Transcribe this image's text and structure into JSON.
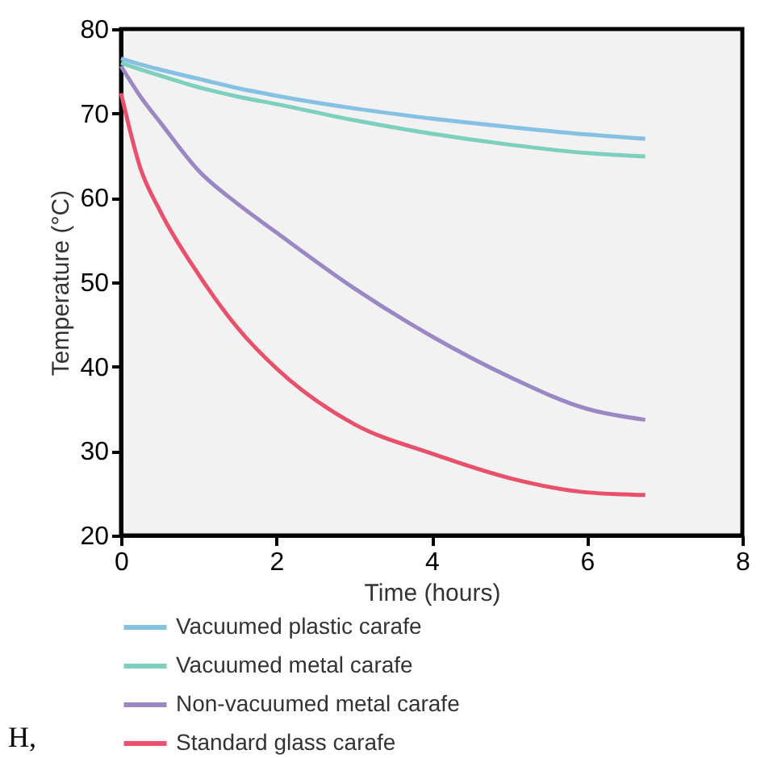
{
  "chart_data": {
    "type": "line",
    "xlabel": "Time (hours)",
    "ylabel": "Temperature (°C)",
    "xlim": [
      0,
      8
    ],
    "xticks": [
      0,
      2,
      4,
      6,
      8
    ],
    "ylim": [
      20,
      80
    ],
    "yticks": [
      20,
      30,
      40,
      50,
      60,
      70,
      80
    ],
    "x": [
      0,
      0.25,
      0.5,
      1,
      1.5,
      2,
      3,
      4,
      5,
      6,
      6.75
    ],
    "series": [
      {
        "name": "Vacuumed plastic carafe",
        "color": "#85c1e3",
        "values": [
          76.5,
          75.8,
          75.2,
          74.1,
          73.0,
          72.1,
          70.6,
          69.4,
          68.4,
          67.5,
          67.0
        ]
      },
      {
        "name": "Vacuumed metal carafe",
        "color": "#7dd0bd",
        "values": [
          76.0,
          75.2,
          74.5,
          73.1,
          72.0,
          71.1,
          69.2,
          67.6,
          66.3,
          65.3,
          64.9
        ]
      },
      {
        "name": "Non-vacuumed metal carafe",
        "color": "#9b87c4",
        "values": [
          75.6,
          72.0,
          69.0,
          63.2,
          59.3,
          55.9,
          49.3,
          43.6,
          38.8,
          35.0,
          33.7
        ]
      },
      {
        "name": "Standard glass carafe",
        "color": "#e8506c",
        "values": [
          72.4,
          63.5,
          58.5,
          50.9,
          44.6,
          39.8,
          33.2,
          29.7,
          26.8,
          25.1,
          24.8
        ]
      }
    ],
    "legend": "bottom",
    "grid": false,
    "marker": "none",
    "line_style": "solid",
    "annotations": [
      "H,"
    ]
  }
}
